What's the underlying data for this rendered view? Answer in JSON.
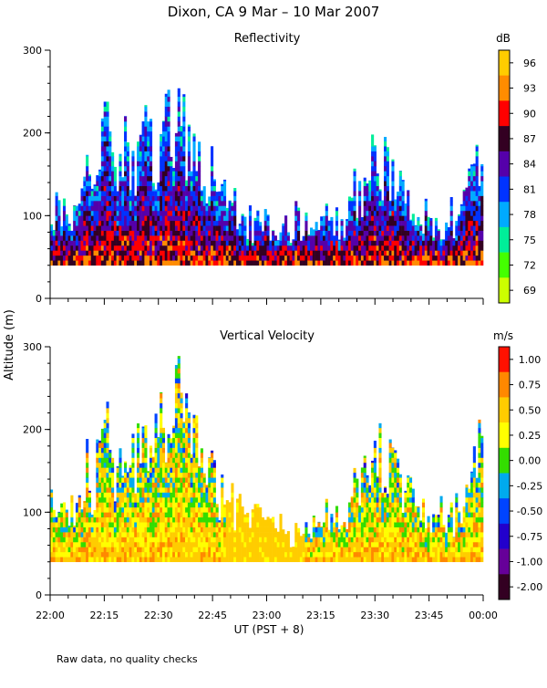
{
  "figure": {
    "title": "Dixon, CA  9 Mar – 10 Mar 2007",
    "ylabel": "Altitude (m)",
    "xlabel": "UT  (PST + 8)",
    "footnote": "Raw data, no quality checks"
  },
  "chart_data": [
    {
      "type": "heatmap",
      "title": "Reflectivity",
      "x_ticks": [
        "22:00",
        "22:15",
        "22:30",
        "22:45",
        "23:00",
        "23:15",
        "23:30",
        "23:45",
        "00:00"
      ],
      "x_range": [
        "22:00",
        "00:00"
      ],
      "y_ticks": [
        0,
        100,
        200,
        300
      ],
      "ylim": [
        0,
        300
      ],
      "colorbar": {
        "unit": "dB",
        "ticks": [
          "96",
          "93",
          "90",
          "87",
          "84",
          "81",
          "78",
          "75",
          "72",
          "69"
        ],
        "colors": [
          "#ffcc00",
          "#ff8c00",
          "#ff0000",
          "#330022",
          "#5500aa",
          "#0033ff",
          "#00aaff",
          "#00ee99",
          "#44ff00",
          "#ccff00"
        ]
      },
      "profile_max_altitude": [
        160,
        120,
        130,
        120,
        140,
        200,
        160,
        220,
        260,
        200,
        240,
        220,
        200,
        260,
        220,
        240,
        280,
        260,
        300,
        260,
        240,
        220,
        200,
        180,
        160,
        150,
        140,
        130,
        120,
        120,
        120,
        120,
        120,
        120,
        120,
        120,
        120,
        120,
        120,
        120,
        120,
        120,
        120,
        180,
        160,
        200,
        230,
        200,
        190,
        180,
        140,
        150,
        120,
        140,
        120,
        120,
        130,
        120,
        140,
        160,
        200,
        220
      ]
    },
    {
      "type": "heatmap",
      "title": "Vertical Velocity",
      "x_ticks": [
        "22:00",
        "22:15",
        "22:30",
        "22:45",
        "23:00",
        "23:15",
        "23:30",
        "23:45",
        "00:00"
      ],
      "x_range": [
        "22:00",
        "00:00"
      ],
      "y_ticks": [
        0,
        100,
        200,
        300
      ],
      "ylim": [
        0,
        300
      ],
      "colorbar": {
        "unit": "m/s",
        "ticks": [
          "1.00",
          "0.75",
          "0.50",
          "0.25",
          "0.00",
          "-0.25",
          "-0.50",
          "-0.75",
          "-1.00",
          "-2.00"
        ],
        "colors": [
          "#ff1100",
          "#ff8800",
          "#ffcc00",
          "#ffff00",
          "#33dd00",
          "#00aaee",
          "#0044ff",
          "#2200cc",
          "#660099",
          "#330022"
        ]
      },
      "profile_max_altitude": [
        160,
        120,
        130,
        120,
        140,
        200,
        160,
        220,
        260,
        200,
        240,
        220,
        200,
        260,
        220,
        240,
        280,
        260,
        300,
        260,
        240,
        220,
        200,
        180,
        160,
        150,
        140,
        130,
        120,
        120,
        100,
        100,
        100,
        100,
        100,
        100,
        100,
        100,
        120,
        120,
        120,
        120,
        120,
        180,
        160,
        200,
        230,
        200,
        190,
        180,
        140,
        150,
        120,
        140,
        120,
        120,
        130,
        120,
        140,
        160,
        200,
        220
      ]
    }
  ]
}
